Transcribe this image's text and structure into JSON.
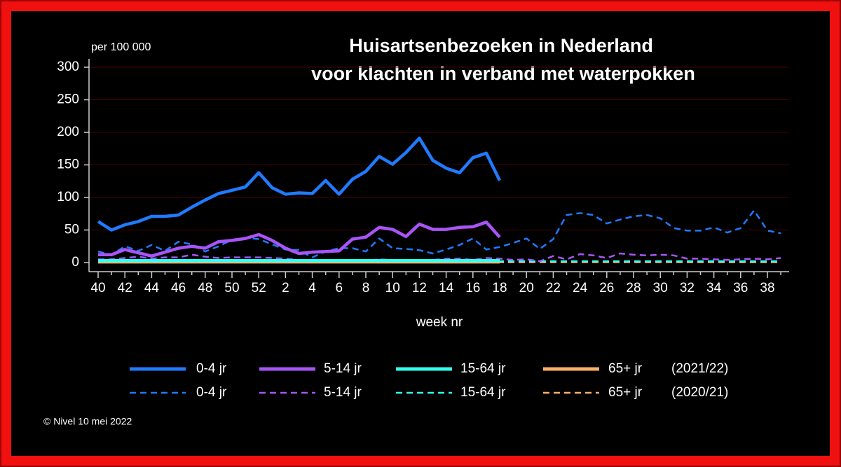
{
  "chart_data": {
    "type": "line",
    "title": [
      "Huisartsenbezoeken in Nederland",
      "voor klachten in verband met waterpokken"
    ],
    "y_label": "per 100 000",
    "x_label": "week nr",
    "footer": "© Nivel 10 mei 2022",
    "categories": [
      "40",
      null,
      "42",
      null,
      "44",
      null,
      "46",
      null,
      "48",
      null,
      "50",
      null,
      "52",
      null,
      "2",
      null,
      "4",
      null,
      "6",
      null,
      "8",
      null,
      "10",
      null,
      "12",
      null,
      "14",
      null,
      "16",
      null,
      "18",
      null,
      "20",
      null,
      "22",
      null,
      "24",
      null,
      "26",
      null,
      "28",
      null,
      "30",
      null,
      "32",
      null,
      "34",
      null,
      "36",
      null,
      "38",
      null
    ],
    "ylim": [
      0,
      300
    ],
    "yticks": [
      0,
      50,
      100,
      150,
      200,
      250,
      300
    ],
    "grid": true,
    "grid_color": "#4a0000",
    "series": [
      {
        "name": "0-4 jr",
        "season": "(2021/22)",
        "color": "#1f7bff",
        "dash": false,
        "values": [
          63,
          50,
          58,
          63,
          71,
          71,
          73,
          85,
          96,
          106,
          111,
          116,
          138,
          115,
          105,
          107,
          106,
          126,
          105,
          128,
          140,
          163,
          151,
          169,
          191,
          157,
          145,
          138,
          161,
          168,
          126,
          null,
          null,
          null,
          null,
          null,
          null,
          null,
          null,
          null,
          null,
          null,
          null,
          null,
          null,
          null,
          null,
          null,
          null,
          null,
          null,
          null
        ]
      },
      {
        "name": "5-14 jr",
        "color": "#a855f7",
        "dash": false,
        "values": [
          12,
          12,
          20,
          15,
          10,
          16,
          22,
          25,
          22,
          32,
          34,
          37,
          43,
          34,
          22,
          14,
          16,
          17,
          18,
          36,
          39,
          54,
          51,
          40,
          59,
          51,
          51,
          54,
          55,
          62,
          39,
          null,
          null,
          null,
          null,
          null,
          null,
          null,
          null,
          null,
          null,
          null,
          null,
          null,
          null,
          null,
          null,
          null,
          null,
          null,
          null,
          null
        ]
      },
      {
        "name": "15-64 jr",
        "color": "#33ffee",
        "dash": false,
        "values": [
          3,
          3,
          3,
          3,
          3,
          3,
          3,
          3,
          3,
          3,
          3,
          3,
          3,
          3,
          3,
          3,
          3,
          3,
          3,
          3,
          3,
          3,
          3,
          3,
          3,
          3,
          3,
          3,
          3,
          3,
          3,
          null,
          null,
          null,
          null,
          null,
          null,
          null,
          null,
          null,
          null,
          null,
          null,
          null,
          null,
          null,
          null,
          null,
          null,
          null,
          null,
          null
        ]
      },
      {
        "name": "65+ jr",
        "color": "#ffb066",
        "dash": false,
        "values": [
          1,
          1,
          1,
          1,
          1,
          1,
          1,
          1,
          1,
          1,
          1,
          1,
          1,
          1,
          1,
          1,
          1,
          1,
          1,
          1,
          1,
          1,
          1,
          1,
          1,
          1,
          1,
          1,
          1,
          1,
          1,
          null,
          null,
          null,
          null,
          null,
          null,
          null,
          null,
          null,
          null,
          null,
          null,
          null,
          null,
          null,
          null,
          null,
          null,
          null,
          null,
          null
        ]
      },
      {
        "name": "0-4 jr",
        "season": "(2020/21)",
        "color": "#1f7bff",
        "dash": true,
        "values": [
          17,
          12,
          25,
          18,
          27,
          18,
          32,
          28,
          17,
          25,
          35,
          38,
          36,
          28,
          20,
          19,
          8,
          17,
          22,
          22,
          17,
          37,
          22,
          21,
          19,
          14,
          20,
          27,
          37,
          20,
          24,
          30,
          37,
          21,
          36,
          73,
          76,
          73,
          60,
          66,
          71,
          73,
          68,
          53,
          49,
          49,
          54,
          46,
          53,
          80,
          49,
          45
        ]
      },
      {
        "name": "5-14 jr",
        "color": "#a855f7",
        "dash": true,
        "values": [
          5,
          5,
          7,
          9,
          6,
          8,
          8,
          12,
          9,
          7,
          8,
          8,
          8,
          7,
          6,
          4,
          3,
          3,
          4,
          4,
          3,
          5,
          4,
          4,
          4,
          4,
          6,
          6,
          4,
          7,
          6,
          4,
          5,
          2,
          10,
          5,
          13,
          11,
          7,
          14,
          12,
          11,
          12,
          11,
          6,
          6,
          5,
          4,
          5,
          6,
          5,
          7
        ]
      },
      {
        "name": "15-64 jr",
        "color": "#33ffee",
        "dash": true,
        "values": [
          2,
          2,
          2,
          2,
          2,
          2,
          2,
          2,
          2,
          2,
          2,
          2,
          2,
          2,
          2,
          2,
          2,
          2,
          2,
          2,
          2,
          2,
          2,
          2,
          2,
          2,
          2,
          2,
          2,
          2,
          2,
          2,
          2,
          2,
          2,
          2,
          2,
          2,
          2,
          2,
          2,
          2,
          2,
          2,
          2,
          2,
          2,
          2,
          2,
          2,
          2,
          2
        ]
      },
      {
        "name": "65+ jr",
        "color": "#ffb066",
        "dash": true,
        "values": [
          0.5,
          0.5,
          0.5,
          0.5,
          0.5,
          0.5,
          0.5,
          0.5,
          0.5,
          0.5,
          0.5,
          0.5,
          0.5,
          0.5,
          0.5,
          0.5,
          0.5,
          0.5,
          0.5,
          0.5,
          0.5,
          0.5,
          0.5,
          0.5,
          0.5,
          0.5,
          0.5,
          0.5,
          0.5,
          0.5,
          0.5,
          0.5,
          0.5,
          0.5,
          0.5,
          0.5,
          0.5,
          0.5,
          0.5,
          0.5,
          0.5,
          0.5,
          0.5,
          0.5,
          0.5,
          0.5,
          0.5,
          0.5,
          0.5,
          0.5,
          0.5,
          0.5
        ]
      }
    ]
  }
}
